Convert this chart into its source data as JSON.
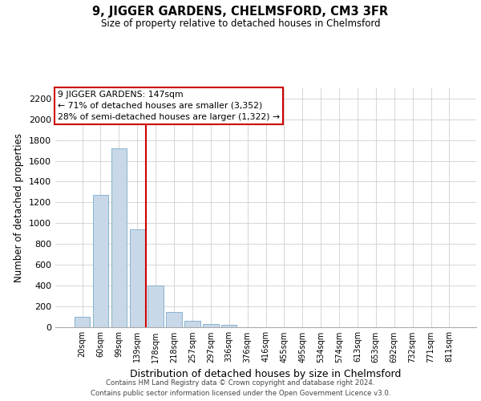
{
  "title": "9, JIGGER GARDENS, CHELMSFORD, CM3 3FR",
  "subtitle": "Size of property relative to detached houses in Chelmsford",
  "xlabel": "Distribution of detached houses by size in Chelmsford",
  "ylabel": "Number of detached properties",
  "categories": [
    "20sqm",
    "60sqm",
    "99sqm",
    "139sqm",
    "178sqm",
    "218sqm",
    "257sqm",
    "297sqm",
    "336sqm",
    "376sqm",
    "416sqm",
    "455sqm",
    "495sqm",
    "534sqm",
    "574sqm",
    "613sqm",
    "653sqm",
    "692sqm",
    "732sqm",
    "771sqm",
    "811sqm"
  ],
  "values": [
    100,
    1270,
    1720,
    940,
    400,
    145,
    60,
    30,
    20,
    0,
    0,
    0,
    0,
    0,
    0,
    0,
    0,
    0,
    0,
    0,
    0
  ],
  "bar_color": "#c8d8e8",
  "bar_edge_color": "#7aaac8",
  "grid_color": "#d0d0d0",
  "background_color": "#ffffff",
  "annotation_text": "9 JIGGER GARDENS: 147sqm\n← 71% of detached houses are smaller (3,352)\n28% of semi-detached houses are larger (1,322) →",
  "annotation_box_color": "#cc0000",
  "property_line_x": 3.47,
  "ylim": [
    0,
    2300
  ],
  "yticks": [
    0,
    200,
    400,
    600,
    800,
    1000,
    1200,
    1400,
    1600,
    1800,
    2000,
    2200
  ],
  "footer_line1": "Contains HM Land Registry data © Crown copyright and database right 2024.",
  "footer_line2": "Contains public sector information licensed under the Open Government Licence v3.0."
}
